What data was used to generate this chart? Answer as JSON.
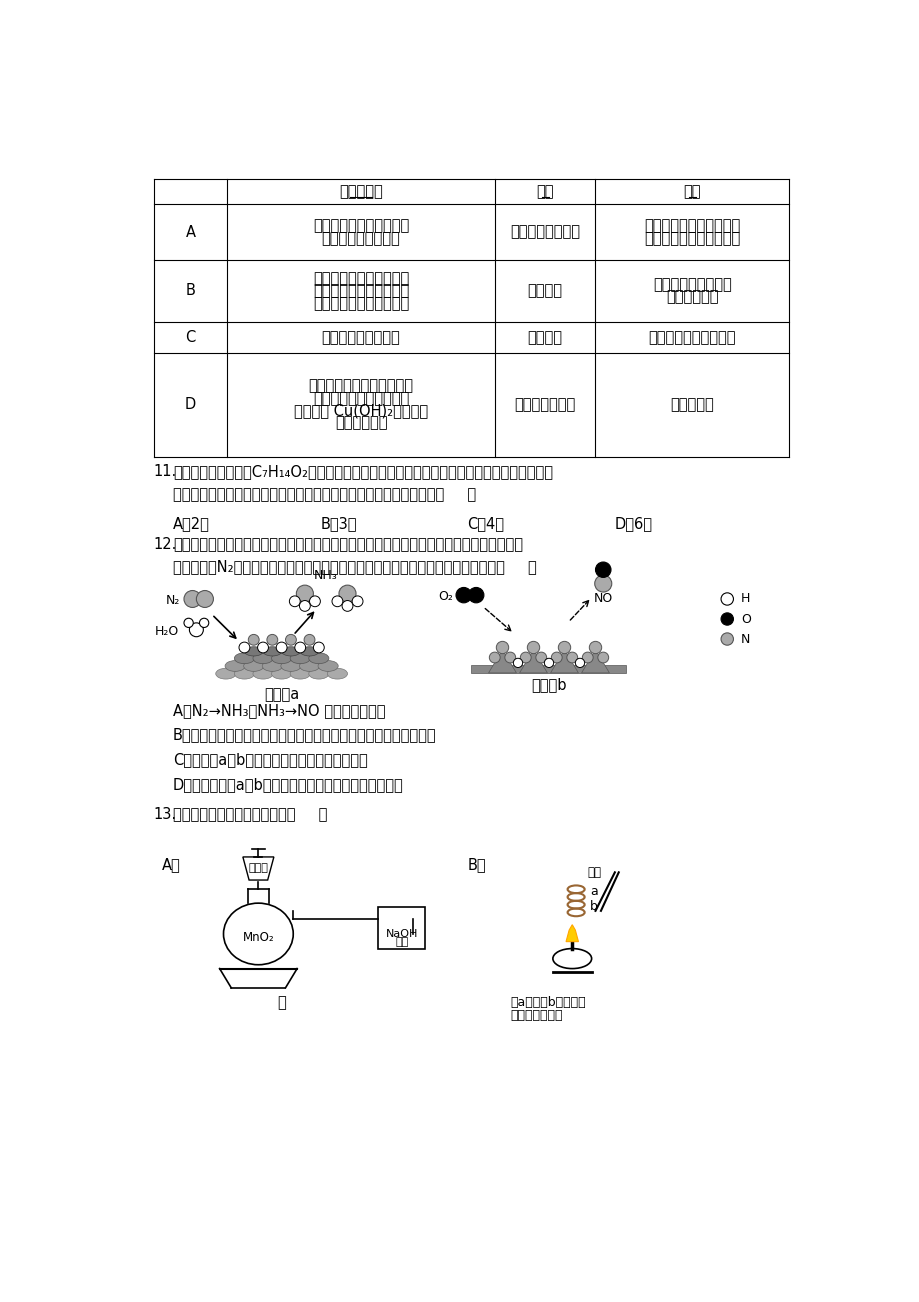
{
  "bg_color": "#ffffff",
  "table": {
    "headers": [
      "",
      "操作和现象",
      "现象",
      "结论"
    ],
    "rows": [
      {
        "label": "A",
        "col1": "将一小块钠分别投入盛有\n水和乙醇的小烧杯中",
        "col2": "都产生可燃性气体",
        "col3": "乙醇羟基中的氢原子与水\n分子中的氢原子同样活泼"
      },
      {
        "label": "B",
        "col1": "在催化剂存在的条件下，\n石蜡油加强热生成的气体\n通入溴的四氯化碳溶液中",
        "col2": "溶液褪色",
        "col3": "石蜡油的分解产物中\n含有不饱和烃"
      },
      {
        "label": "C",
        "col1": "向苯中加溴水，振荡",
        "col2": "溴水褪色",
        "col3": "苯与溴水发生取代反应"
      },
      {
        "label": "D",
        "col1": "向蔗糖溶液中加入稀硫酸，\n水浴加热一段时间后，再\n加入新制 Cu(OH)₂悬浊液，\n用酒精灯加热",
        "col2": "未见砖红色沉淀",
        "col3": "蔗糖未水解"
      }
    ]
  },
  "q11": {
    "number": "11.",
    "text1": "有机物甲的分子式为C₇H₁₄O₂，在酸性条件下，甲水解为乙和丙两种有机物；在相同的温度和",
    "text2": "压强下，相等质量的乙和丙的蒸气所占体积相同。则甲的可能结构有（     ）",
    "options": [
      "A．2种",
      "B．3种",
      "C．4种",
      "D．6种"
    ]
  },
  "q12": {
    "number": "12.",
    "text1": "自然界中时刻存在着氮气的转化。实现氮气按照一定方向转化一直是科学领域研究的重要课",
    "text2": "题，如图为N₂分子在催化剂的作用下发生的一系列转化示意图。下列叙述正确的是（     ）",
    "options": [
      "A．N₂→NH₃，NH₃→NO 均属于氮的固定",
      "B．使用催化剂，改变了反应的途径，使合成氨反应放出的热量减少",
      "C．催化剂a、b表面均发生了极性共价键的断裂",
      "D．使用催化剂a、b均可以提高单位时间内生成物的产量"
    ]
  },
  "q13": {
    "number": "13.",
    "text1": "下列实验能达到预期目的的是（     ）"
  }
}
